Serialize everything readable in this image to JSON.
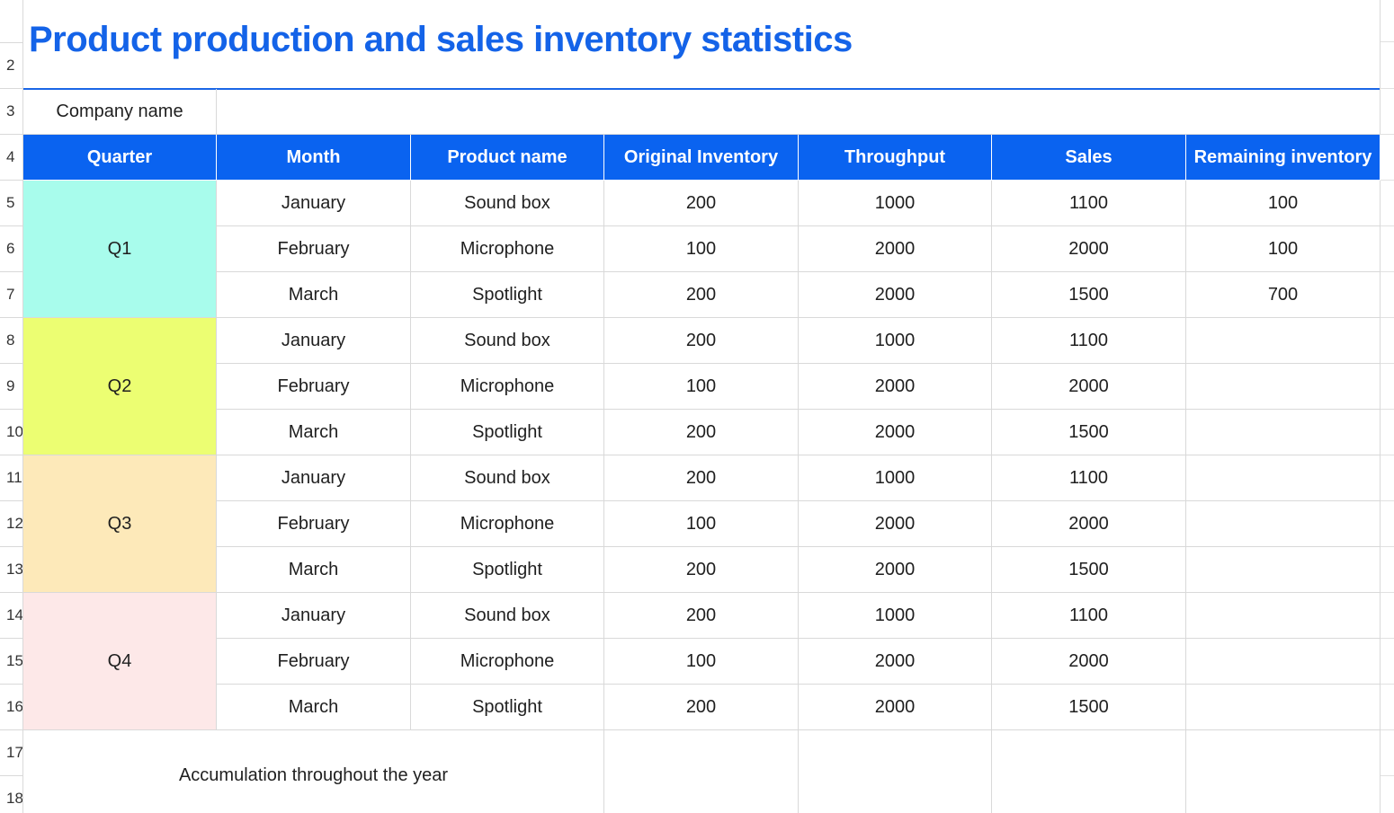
{
  "title": "Product production and sales inventory statistics",
  "company_label": "Company name",
  "row_numbers": [
    "2",
    "3",
    "4",
    "5",
    "6",
    "7",
    "8",
    "9",
    "10",
    "11",
    "12",
    "13",
    "14",
    "15",
    "16",
    "17",
    "18"
  ],
  "headers": [
    "Quarter",
    "Month",
    "Product name",
    "Original Inventory",
    "Throughput",
    "Sales",
    "Remaining inventory"
  ],
  "quarters": [
    {
      "label": "Q1",
      "color": "#a8fcec",
      "rows": [
        {
          "month": "January",
          "product": "Sound box",
          "original": "200",
          "throughput": "1000",
          "sales": "1100",
          "remaining": "100"
        },
        {
          "month": "February",
          "product": "Microphone",
          "original": "100",
          "throughput": "2000",
          "sales": "2000",
          "remaining": "100"
        },
        {
          "month": "March",
          "product": "Spotlight",
          "original": "200",
          "throughput": "2000",
          "sales": "1500",
          "remaining": "700"
        }
      ]
    },
    {
      "label": "Q2",
      "color": "#ecfe72",
      "rows": [
        {
          "month": "January",
          "product": "Sound box",
          "original": "200",
          "throughput": "1000",
          "sales": "1100",
          "remaining": ""
        },
        {
          "month": "February",
          "product": "Microphone",
          "original": "100",
          "throughput": "2000",
          "sales": "2000",
          "remaining": ""
        },
        {
          "month": "March",
          "product": "Spotlight",
          "original": "200",
          "throughput": "2000",
          "sales": "1500",
          "remaining": ""
        }
      ]
    },
    {
      "label": "Q3",
      "color": "#fde9b9",
      "rows": [
        {
          "month": "January",
          "product": "Sound box",
          "original": "200",
          "throughput": "1000",
          "sales": "1100",
          "remaining": ""
        },
        {
          "month": "February",
          "product": "Microphone",
          "original": "100",
          "throughput": "2000",
          "sales": "2000",
          "remaining": ""
        },
        {
          "month": "March",
          "product": "Spotlight",
          "original": "200",
          "throughput": "2000",
          "sales": "1500",
          "remaining": ""
        }
      ]
    },
    {
      "label": "Q4",
      "color": "#fde8e8",
      "rows": [
        {
          "month": "January",
          "product": "Sound box",
          "original": "200",
          "throughput": "1000",
          "sales": "1100",
          "remaining": ""
        },
        {
          "month": "February",
          "product": "Microphone",
          "original": "100",
          "throughput": "2000",
          "sales": "2000",
          "remaining": ""
        },
        {
          "month": "March",
          "product": "Spotlight",
          "original": "200",
          "throughput": "2000",
          "sales": "1500",
          "remaining": ""
        }
      ]
    }
  ],
  "total_label": "Accumulation throughout the year",
  "colors": {
    "title": "#1463e8",
    "header_bg": "#0a63f0",
    "header_text": "#ffffff"
  }
}
